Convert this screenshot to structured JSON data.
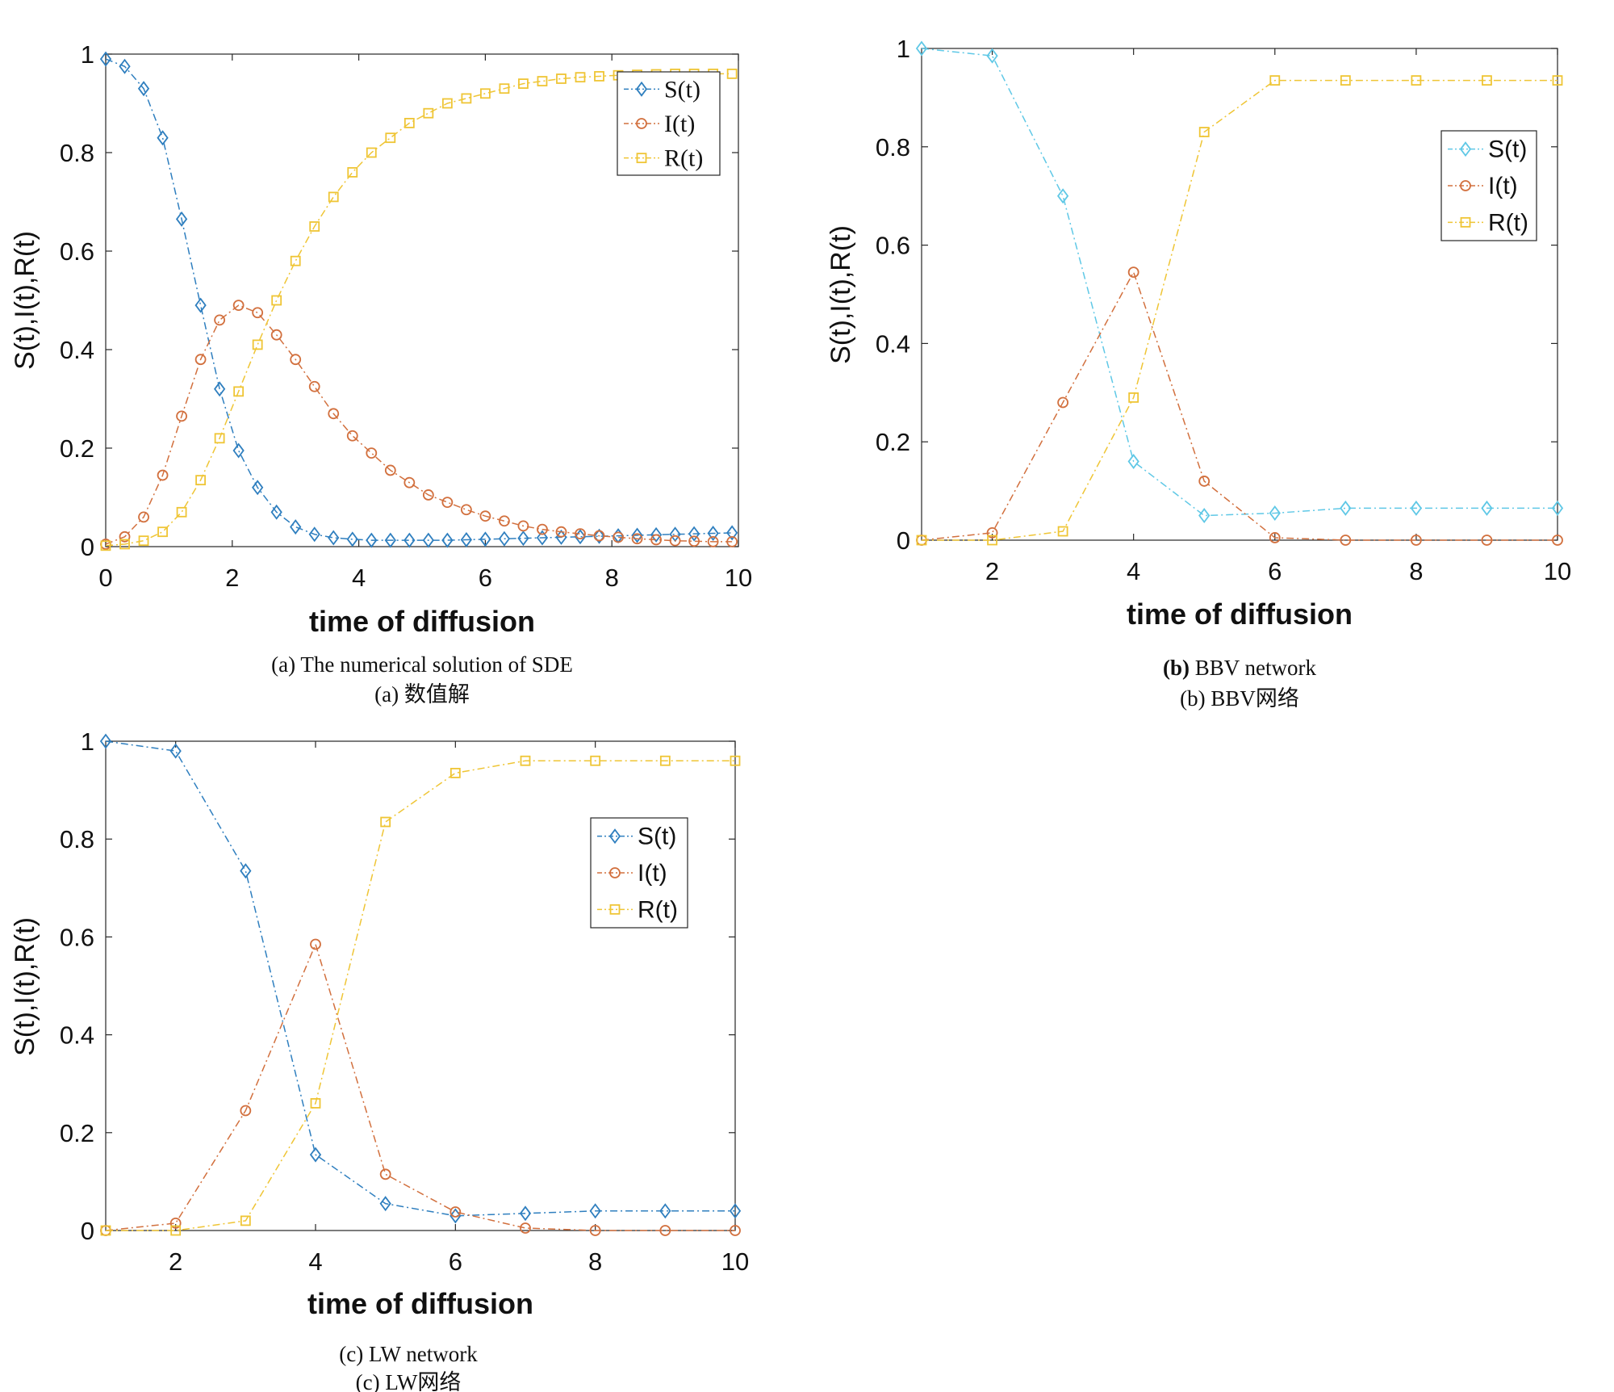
{
  "colors": {
    "S": "#2f7fbf",
    "I": "#d2703e",
    "R": "#efc535",
    "S_light": "#5fc8e6"
  },
  "chart_data": [
    {
      "id": "a",
      "type": "line",
      "xlabel": "time of diffusion",
      "ylabel": "S(t),I(t),R(t)",
      "xlim": [
        0,
        10
      ],
      "ylim": [
        0,
        1
      ],
      "xticks": [
        "0",
        "2",
        "4",
        "6",
        "8",
        "10"
      ],
      "yticks": [
        "0",
        "0.2",
        "0.4",
        "0.6",
        "0.8",
        "1"
      ],
      "legend": "top-right",
      "caption_en": "(a) The numerical solution of SDE",
      "caption_cn": "(a) 数值解",
      "series": [
        {
          "name": "S(t)",
          "marker": "diamond",
          "color": "#2f7fbf",
          "x": [
            0,
            0.3,
            0.6,
            0.9,
            1.2,
            1.5,
            1.8,
            2.1,
            2.4,
            2.7,
            3.0,
            3.3,
            3.6,
            3.9,
            4.2,
            4.5,
            4.8,
            5.1,
            5.4,
            5.7,
            6.0,
            6.3,
            6.6,
            6.9,
            7.2,
            7.5,
            7.8,
            8.1,
            8.4,
            8.7,
            9.0,
            9.3,
            9.6,
            9.9
          ],
          "y": [
            0.99,
            0.975,
            0.93,
            0.83,
            0.665,
            0.49,
            0.32,
            0.195,
            0.12,
            0.07,
            0.04,
            0.025,
            0.018,
            0.015,
            0.013,
            0.013,
            0.013,
            0.013,
            0.013,
            0.014,
            0.015,
            0.016,
            0.017,
            0.018,
            0.019,
            0.02,
            0.021,
            0.022,
            0.023,
            0.024,
            0.025,
            0.026,
            0.027,
            0.028
          ]
        },
        {
          "name": "I(t)",
          "marker": "circle",
          "color": "#d2703e",
          "x": [
            0,
            0.3,
            0.6,
            0.9,
            1.2,
            1.5,
            1.8,
            2.1,
            2.4,
            2.7,
            3.0,
            3.3,
            3.6,
            3.9,
            4.2,
            4.5,
            4.8,
            5.1,
            5.4,
            5.7,
            6.0,
            6.3,
            6.6,
            6.9,
            7.2,
            7.5,
            7.8,
            8.1,
            8.4,
            8.7,
            9.0,
            9.3,
            9.6,
            9.9
          ],
          "y": [
            0.005,
            0.02,
            0.06,
            0.145,
            0.265,
            0.38,
            0.46,
            0.49,
            0.475,
            0.43,
            0.38,
            0.325,
            0.27,
            0.225,
            0.19,
            0.155,
            0.13,
            0.105,
            0.09,
            0.075,
            0.062,
            0.052,
            0.042,
            0.035,
            0.03,
            0.026,
            0.022,
            0.019,
            0.016,
            0.014,
            0.012,
            0.011,
            0.01,
            0.01
          ]
        },
        {
          "name": "R(t)",
          "marker": "square",
          "color": "#efc535",
          "x": [
            0,
            0.3,
            0.6,
            0.9,
            1.2,
            1.5,
            1.8,
            2.1,
            2.4,
            2.7,
            3.0,
            3.3,
            3.6,
            3.9,
            4.2,
            4.5,
            4.8,
            5.1,
            5.4,
            5.7,
            6.0,
            6.3,
            6.6,
            6.9,
            7.2,
            7.5,
            7.8,
            8.1,
            8.4,
            8.7,
            9.0,
            9.3,
            9.6,
            9.9
          ],
          "y": [
            0.002,
            0.005,
            0.012,
            0.03,
            0.07,
            0.135,
            0.22,
            0.315,
            0.41,
            0.5,
            0.58,
            0.65,
            0.71,
            0.76,
            0.8,
            0.83,
            0.86,
            0.88,
            0.9,
            0.91,
            0.92,
            0.93,
            0.94,
            0.945,
            0.95,
            0.953,
            0.955,
            0.957,
            0.958,
            0.959,
            0.96,
            0.96,
            0.96,
            0.96
          ]
        }
      ]
    },
    {
      "id": "b",
      "type": "line",
      "xlabel": "time of diffusion",
      "ylabel": "S(t),I(t),R(t)",
      "xlim": [
        1,
        10
      ],
      "ylim": [
        0,
        1
      ],
      "xticks": [
        "2",
        "4",
        "6",
        "8",
        "10"
      ],
      "yticks": [
        "0",
        "0.2",
        "0.4",
        "0.6",
        "0.8",
        "1"
      ],
      "legend": "top-right",
      "caption_en_bold": "(b)",
      "caption_en": " BBV network",
      "caption_cn": "(b) BBV网络",
      "series": [
        {
          "name": "S(t)",
          "marker": "diamond",
          "color": "#5fc8e6",
          "x": [
            1,
            2,
            3,
            4,
            5,
            6,
            7,
            8,
            9,
            10
          ],
          "y": [
            1.0,
            0.985,
            0.7,
            0.16,
            0.05,
            0.055,
            0.065,
            0.065,
            0.065,
            0.065
          ]
        },
        {
          "name": "I(t)",
          "marker": "circle",
          "color": "#d2703e",
          "x": [
            1,
            2,
            3,
            4,
            5,
            6,
            7,
            8,
            9,
            10
          ],
          "y": [
            0.0,
            0.015,
            0.28,
            0.545,
            0.12,
            0.005,
            0.0,
            0.0,
            0.0,
            0.0
          ]
        },
        {
          "name": "R(t)",
          "marker": "square",
          "color": "#efc535",
          "x": [
            1,
            2,
            3,
            4,
            5,
            6,
            7,
            8,
            9,
            10
          ],
          "y": [
            0.0,
            0.0,
            0.018,
            0.29,
            0.83,
            0.935,
            0.935,
            0.935,
            0.935,
            0.935
          ]
        }
      ]
    },
    {
      "id": "c",
      "type": "line",
      "xlabel": "time of diffusion",
      "ylabel": "S(t),I(t),R(t)",
      "xlim": [
        1,
        10
      ],
      "ylim": [
        0,
        1
      ],
      "xticks": [
        "2",
        "4",
        "6",
        "8",
        "10"
      ],
      "yticks": [
        "0",
        "0.2",
        "0.4",
        "0.6",
        "0.8",
        "1"
      ],
      "legend": "upper-right",
      "caption_en": "(c) LW network",
      "caption_cn": "(c) LW网络",
      "series": [
        {
          "name": "S(t)",
          "marker": "diamond",
          "color": "#2f7fbf",
          "x": [
            1,
            2,
            3,
            4,
            5,
            6,
            7,
            8,
            9,
            10
          ],
          "y": [
            1.0,
            0.98,
            0.735,
            0.155,
            0.055,
            0.03,
            0.035,
            0.04,
            0.04,
            0.04
          ]
        },
        {
          "name": "I(t)",
          "marker": "circle",
          "color": "#d2703e",
          "x": [
            1,
            2,
            3,
            4,
            5,
            6,
            7,
            8,
            9,
            10
          ],
          "y": [
            0.0,
            0.015,
            0.245,
            0.585,
            0.115,
            0.038,
            0.005,
            0.0,
            0.0,
            0.0
          ]
        },
        {
          "name": "R(t)",
          "marker": "square",
          "color": "#efc535",
          "x": [
            1,
            2,
            3,
            4,
            5,
            6,
            7,
            8,
            9,
            10
          ],
          "y": [
            0.0,
            0.0,
            0.02,
            0.26,
            0.835,
            0.935,
            0.96,
            0.96,
            0.96,
            0.96
          ]
        }
      ]
    }
  ]
}
